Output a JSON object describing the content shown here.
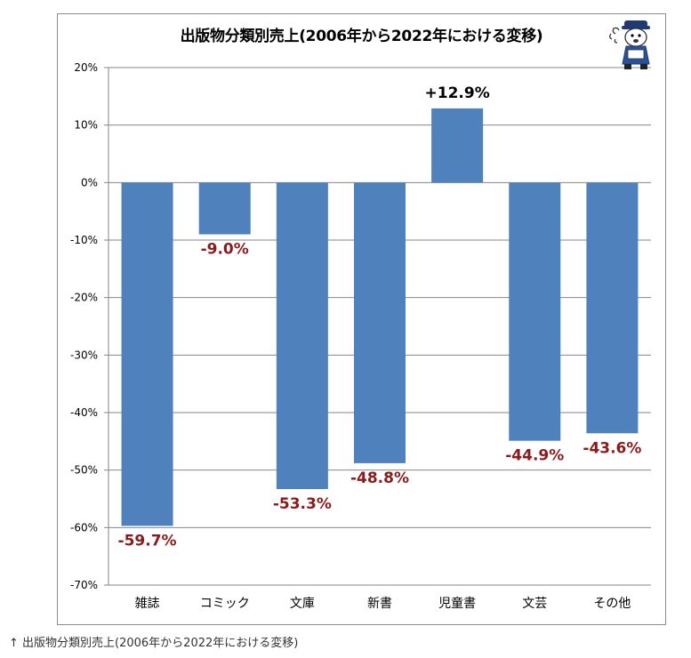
{
  "chart_data": {
    "type": "bar",
    "title": "出版物分類別売上(2006年から2022年における変移)",
    "categories": [
      "雑誌",
      "コミック",
      "文庫",
      "新書",
      "児童書",
      "文芸",
      "その他"
    ],
    "values": [
      -59.7,
      -9.0,
      -53.3,
      -48.8,
      12.9,
      -44.9,
      -43.6
    ],
    "data_labels": [
      "-59.7%",
      "-9.0%",
      "-53.3%",
      "-48.8%",
      "+12.9%",
      "-44.9%",
      "-43.6%"
    ],
    "yticks": [
      20,
      10,
      0,
      -10,
      -20,
      -30,
      -40,
      -50,
      -60,
      -70
    ],
    "ytick_labels": [
      "20%",
      "10%",
      "0%",
      "-10%",
      "-20%",
      "-30%",
      "-40%",
      "-50%",
      "-60%",
      "-70%"
    ],
    "ylim": [
      -70,
      20
    ],
    "grid": true,
    "colors": {
      "bar": "#4f81bd",
      "negative_label": "#8b1a1a",
      "positive_label": "#000000"
    }
  },
  "caption": "↑ 出版物分類別売上(2006年から2022年における変移)",
  "mascot_icon": "mascot-icon"
}
